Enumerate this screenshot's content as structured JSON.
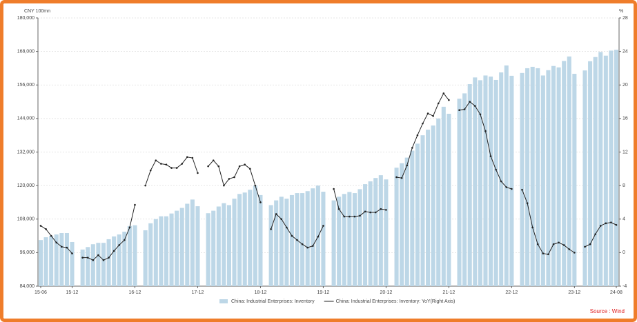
{
  "chart_data": {
    "type": "bar",
    "y_label": "CNY 100mn",
    "y2_label": "%",
    "source": "Source : Wind",
    "categories": [
      "15-06",
      null,
      null,
      null,
      null,
      null,
      "15-12",
      null,
      null,
      null,
      null,
      null,
      null,
      null,
      null,
      null,
      null,
      null,
      "16-12",
      null,
      null,
      null,
      null,
      null,
      null,
      null,
      null,
      null,
      null,
      null,
      "17-12",
      null,
      null,
      null,
      null,
      null,
      null,
      null,
      null,
      null,
      null,
      null,
      "18-12",
      null,
      null,
      null,
      null,
      null,
      null,
      null,
      null,
      null,
      null,
      null,
      "19-12",
      null,
      null,
      null,
      null,
      null,
      null,
      null,
      null,
      null,
      null,
      null,
      "20-12",
      null,
      null,
      null,
      null,
      null,
      null,
      null,
      null,
      null,
      null,
      null,
      "21-12",
      null,
      null,
      null,
      null,
      null,
      null,
      null,
      null,
      null,
      null,
      null,
      "22-12",
      null,
      null,
      null,
      null,
      null,
      null,
      null,
      null,
      null,
      null,
      null,
      "23-12",
      null,
      null,
      null,
      null,
      null,
      null,
      null,
      "24-08"
    ],
    "series": [
      {
        "name": "China: Industrial Enterprises: Inventory",
        "type": "bar",
        "color": "#bdd7e7",
        "values": [
          100500,
          101500,
          102000,
          102500,
          103000,
          103000,
          99800,
          null,
          97100,
          98000,
          99000,
          99500,
          99500,
          100800,
          101800,
          102500,
          103500,
          105500,
          105800,
          null,
          104000,
          106500,
          108000,
          109000,
          109000,
          110000,
          111000,
          112000,
          113500,
          115000,
          112600,
          null,
          110100,
          111000,
          112500,
          113700,
          113000,
          115300,
          117000,
          117500,
          118500,
          120000,
          116600,
          null,
          113000,
          114700,
          116000,
          115300,
          116600,
          117300,
          117300,
          118000,
          119000,
          120000,
          117800,
          null,
          114700,
          116000,
          117000,
          117700,
          117300,
          118700,
          120500,
          121500,
          122700,
          123700,
          122200,
          null,
          126400,
          128000,
          130000,
          132500,
          135000,
          138000,
          140000,
          141500,
          144000,
          148200,
          145700,
          null,
          151100,
          153000,
          156300,
          158700,
          157700,
          159400,
          159000,
          157800,
          160500,
          163000,
          159300,
          null,
          160300,
          162000,
          162500,
          162000,
          159400,
          161300,
          162800,
          162300,
          164600,
          166200,
          160000,
          null,
          161200,
          164500,
          166000,
          167800,
          166500,
          168300,
          168600
        ]
      },
      {
        "name": "China: Industrial Enterprises: Inventory: YoY(Right Axis)",
        "type": "line",
        "axis": "y2",
        "color": "#222222",
        "values": [
          3.2,
          2.8,
          2.0,
          1.2,
          0.7,
          0.6,
          -0.1,
          null,
          -0.6,
          -0.6,
          -0.9,
          -0.3,
          -0.9,
          -0.6,
          0.2,
          0.9,
          1.5,
          3.0,
          5.7,
          null,
          8.0,
          9.8,
          11.0,
          10.6,
          10.5,
          10.1,
          10.1,
          10.6,
          11.4,
          11.3,
          9.5,
          null,
          10.3,
          11.0,
          10.3,
          8.0,
          8.8,
          9.0,
          10.3,
          10.5,
          10.0,
          8.0,
          6.0,
          null,
          2.8,
          4.6,
          4.0,
          3.0,
          2.0,
          1.5,
          1.0,
          0.6,
          0.8,
          1.9,
          3.2,
          null,
          7.6,
          5.2,
          4.3,
          4.3,
          4.3,
          4.4,
          4.9,
          4.8,
          4.8,
          5.2,
          5.1,
          null,
          9.0,
          8.9,
          10.4,
          12.5,
          14.0,
          15.4,
          16.6,
          16.3,
          17.8,
          19.0,
          18.2,
          null,
          17.0,
          17.1,
          18.0,
          17.5,
          16.5,
          14.5,
          11.5,
          9.9,
          8.5,
          7.8,
          7.6,
          null,
          7.5,
          5.9,
          3.0,
          1.0,
          -0.1,
          -0.2,
          1.0,
          1.2,
          0.9,
          0.4,
          0.0,
          null,
          0.7,
          1.0,
          2.2,
          3.2,
          3.5,
          3.6,
          3.3
        ]
      }
    ],
    "ylim": [
      84000,
      180000
    ],
    "yticks": [
      {
        "value": 84000,
        "label": "84,000"
      },
      {
        "value": 96000,
        "label": "96,000"
      },
      {
        "value": 108000,
        "label": "108,000"
      },
      {
        "value": 120000,
        "label": "120,000"
      },
      {
        "value": 132000,
        "label": "132,000"
      },
      {
        "value": 144000,
        "label": "144,000"
      },
      {
        "value": 156000,
        "label": "156,000"
      },
      {
        "value": 168000,
        "label": "168,000"
      },
      {
        "value": 180000,
        "label": "180,000"
      }
    ],
    "y2lim": [
      -4,
      28
    ],
    "y2ticks": [
      -4,
      0,
      4,
      8,
      12,
      16,
      20,
      24,
      28
    ],
    "grid": true,
    "legend": "bottom"
  }
}
